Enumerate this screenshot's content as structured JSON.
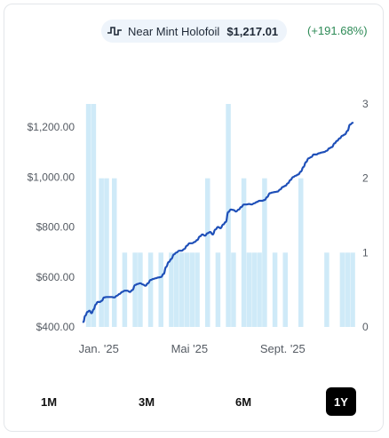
{
  "legend": {
    "icon": "step-chart-icon",
    "name": "Near Mint Holofoil",
    "price": "$1,217.01",
    "change": "(+191.68%)",
    "change_color": "#2e8b57"
  },
  "range_buttons": [
    {
      "label": "1M",
      "active": false
    },
    {
      "label": "3M",
      "active": false
    },
    {
      "label": "6M",
      "active": false
    },
    {
      "label": "1Y",
      "active": true
    }
  ],
  "chart_data": {
    "type": "line",
    "title": "",
    "y_left": {
      "ticks": [
        "$1,200.00",
        "$1,000.00",
        "$800.00",
        "$600.00",
        "$400.00"
      ],
      "tick_values": [
        1200,
        1000,
        800,
        600,
        400
      ],
      "range": [
        400,
        1200
      ]
    },
    "y_right": {
      "ticks": [
        "3",
        "2",
        "1",
        "0"
      ],
      "tick_values": [
        3,
        2,
        1,
        0
      ],
      "range": [
        0,
        3
      ]
    },
    "x_ticks": [
      {
        "label": "Jan. '25",
        "week": 0
      },
      {
        "label": "Mai '25",
        "week": 17.5
      },
      {
        "label": "Sept. '25",
        "week": 35.5
      }
    ],
    "colors": {
      "line": "#1e4fb8",
      "bars": "#cfeaf8"
    },
    "series": [
      {
        "name": "Near Mint Holofoil",
        "kind": "line",
        "x": [
          -3,
          -2.6,
          -2.2,
          -1.8,
          -1.4,
          -1,
          -0.6,
          -0.2,
          0.2,
          0.6,
          1,
          1.5,
          2,
          2.5,
          3,
          3.5,
          4,
          4.5,
          5,
          5.5,
          6,
          6.5,
          7,
          7.5,
          8,
          8.5,
          9,
          9.5,
          10,
          10.5,
          11,
          11.5,
          12,
          12.5,
          13,
          13.5,
          14,
          14.5,
          15,
          15.5,
          16,
          16.5,
          17,
          17.5,
          18,
          18.5,
          19,
          19.5,
          20,
          20.5,
          21,
          21.5,
          22,
          22.5,
          23,
          23.5,
          24,
          24.5,
          25,
          25.5,
          26,
          26.5,
          27,
          27.5,
          28,
          28.5,
          29,
          29.5,
          30,
          30.5,
          31,
          31.5,
          32,
          32.5,
          33,
          33.5,
          34,
          34.5,
          35,
          35.5,
          36,
          36.5,
          37,
          37.5,
          38,
          38.5,
          39,
          39.5,
          40,
          40.5,
          41,
          41.5,
          42,
          42.5,
          43,
          43.5,
          44,
          44.5,
          45,
          45.5,
          46,
          46.5,
          47,
          47.5,
          48,
          48.5,
          49
        ],
        "y": [
          420,
          445,
          460,
          465,
          455,
          470,
          490,
          500,
          500,
          505,
          518,
          520,
          520,
          520,
          518,
          525,
          532,
          540,
          545,
          545,
          540,
          548,
          568,
          572,
          575,
          570,
          565,
          575,
          588,
          592,
          595,
          598,
          600,
          612,
          640,
          660,
          672,
          690,
          698,
          705,
          705,
          712,
          725,
          735,
          735,
          740,
          748,
          762,
          770,
          765,
          775,
          780,
          770,
          790,
          800,
          795,
          810,
          820,
          860,
          870,
          868,
          862,
          870,
          880,
          890,
          890,
          892,
          890,
          895,
          900,
          905,
          905,
          908,
          920,
          935,
          938,
          940,
          942,
          950,
          960,
          965,
          975,
          988,
          1000,
          1005,
          1010,
          1022,
          1040,
          1060,
          1075,
          1080,
          1090,
          1090,
          1095,
          1098,
          1100,
          1105,
          1115,
          1120,
          1135,
          1145,
          1155,
          1165,
          1170,
          1185,
          1210,
          1217
        ]
      },
      {
        "name": "",
        "kind": "bar",
        "axis": "right",
        "x": [
          -2,
          -1,
          0.5,
          1.5,
          3,
          5,
          7,
          8,
          10,
          12,
          14,
          15,
          16,
          17,
          18,
          19,
          21,
          23,
          25,
          26,
          28,
          29,
          30,
          31,
          32,
          34,
          36,
          39,
          44,
          47,
          48,
          49
        ],
        "values": [
          3,
          3,
          2,
          2,
          2,
          1,
          1,
          1,
          1,
          1,
          1,
          1,
          1,
          1,
          1,
          1,
          2,
          1,
          3,
          1,
          2,
          1,
          1,
          1,
          2,
          1,
          1,
          2,
          1,
          1,
          1,
          1
        ]
      }
    ]
  }
}
